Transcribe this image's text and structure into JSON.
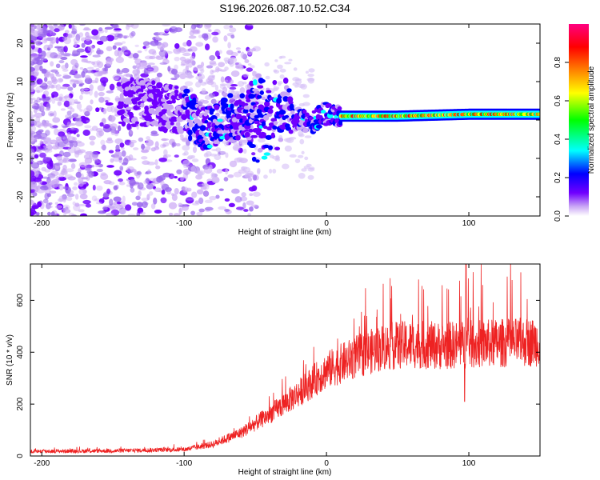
{
  "title": "S196.2026.087.10.52.C34",
  "chart_data": [
    {
      "type": "heatmap",
      "xlabel": "Height of straight line (km)",
      "ylabel": "Frequency (Hz)",
      "xlim": [
        -208,
        150
      ],
      "ylim": [
        -25,
        25
      ],
      "xticks": [
        -200,
        -100,
        0,
        100
      ],
      "yticks": [
        -20,
        -10,
        0,
        10,
        20
      ],
      "colorbar": {
        "label": "Normalized spectral amplitude",
        "range": [
          0,
          1
        ],
        "ticks": [
          0.0,
          0.2,
          0.4,
          0.6,
          0.8
        ],
        "colors": [
          "#ffffff",
          "#c9a6f5",
          "#7000ff",
          "#0000ff",
          "#00ffff",
          "#00ff00",
          "#ffff00",
          "#ff8000",
          "#ff0000",
          "#ff0080"
        ]
      },
      "ridge": [
        {
          "x": -140,
          "y": 5
        },
        {
          "x": -120,
          "y": 4
        },
        {
          "x": -100,
          "y": 2
        },
        {
          "x": -85,
          "y": -2
        },
        {
          "x": -70,
          "y": 1
        },
        {
          "x": -50,
          "y": 0
        },
        {
          "x": -40,
          "y": 0
        },
        {
          "x": -30,
          "y": 2
        },
        {
          "x": -20,
          "y": 0
        },
        {
          "x": -10,
          "y": -1
        },
        {
          "x": 0,
          "y": 2
        },
        {
          "x": 10,
          "y": 1
        },
        {
          "x": 50,
          "y": 1
        },
        {
          "x": 100,
          "y": 1.5
        },
        {
          "x": 150,
          "y": 1.5
        }
      ]
    },
    {
      "type": "line",
      "xlabel": "Height of straight line (km)",
      "ylabel": "SNR (10 * v/v)",
      "xlim": [
        -208,
        150
      ],
      "ylim": [
        0,
        740
      ],
      "xticks": [
        -200,
        -100,
        0,
        100
      ],
      "yticks": [
        0,
        200,
        400,
        600
      ],
      "color": "#ee2222",
      "trend": [
        {
          "x": -208,
          "y": 18
        },
        {
          "x": -150,
          "y": 20
        },
        {
          "x": -100,
          "y": 25
        },
        {
          "x": -80,
          "y": 45
        },
        {
          "x": -60,
          "y": 90
        },
        {
          "x": -40,
          "y": 160
        },
        {
          "x": -20,
          "y": 240
        },
        {
          "x": 0,
          "y": 330
        },
        {
          "x": 20,
          "y": 380
        },
        {
          "x": 40,
          "y": 420
        },
        {
          "x": 60,
          "y": 430
        },
        {
          "x": 80,
          "y": 425
        },
        {
          "x": 100,
          "y": 430
        },
        {
          "x": 120,
          "y": 435
        },
        {
          "x": 150,
          "y": 440
        }
      ],
      "peak": {
        "x": 98,
        "y": 740
      },
      "dip": {
        "x": 97,
        "y": 210
      }
    }
  ]
}
